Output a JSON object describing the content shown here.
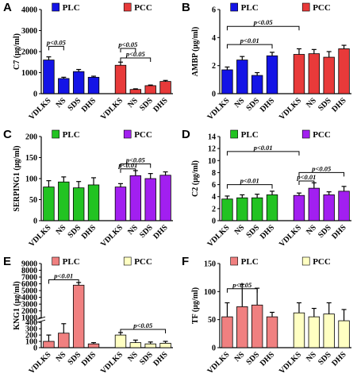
{
  "chart_data": [
    {
      "type": "bar",
      "panel": "A",
      "y_label": "C7 (μg/ml)",
      "categories": [
        "VDLKS",
        "NS",
        "SDS",
        "DHS",
        "VDLKS",
        "NS",
        "SDS",
        "DHS"
      ],
      "series": [
        {
          "name": "PLC",
          "color": "#1414e6",
          "values": [
            1600,
            720,
            1050,
            780,
            null,
            null,
            null,
            null
          ],
          "errors": [
            150,
            60,
            100,
            50,
            null,
            null,
            null,
            null
          ]
        },
        {
          "name": "PCC",
          "color": "#e83a3a",
          "values": [
            null,
            null,
            null,
            null,
            1350,
            200,
            380,
            580
          ],
          "errors": [
            null,
            null,
            null,
            null,
            150,
            30,
            30,
            50
          ]
        }
      ],
      "ylim": [
        0,
        4000
      ],
      "yticks": [
        0,
        1000,
        2000,
        3000,
        4000
      ],
      "annotations": [
        {
          "text": "p<0.05",
          "from": 0,
          "to": 1,
          "y": 2250
        },
        {
          "text": "p<0.05",
          "from": 4,
          "to": 5,
          "y": 2150
        },
        {
          "text": "p<0.05",
          "from": 4,
          "to": 6,
          "y": 1700
        }
      ]
    },
    {
      "type": "bar",
      "panel": "B",
      "y_label": "AMBP (μg/ml)",
      "categories": [
        "VDLKS",
        "NS",
        "SDS",
        "DHS",
        "VDLKS",
        "NS",
        "SDS",
        "DHS"
      ],
      "series": [
        {
          "name": "PLC",
          "color": "#1414e6",
          "values": [
            1.7,
            2.4,
            1.3,
            2.7,
            null,
            null,
            null,
            null
          ],
          "errors": [
            0.2,
            0.25,
            0.2,
            0.25,
            null,
            null,
            null,
            null
          ]
        },
        {
          "name": "PCC",
          "color": "#e83a3a",
          "values": [
            null,
            null,
            null,
            null,
            2.8,
            2.85,
            2.6,
            3.2
          ],
          "errors": [
            null,
            null,
            null,
            null,
            0.4,
            0.3,
            0.4,
            0.25
          ]
        }
      ],
      "ylim": [
        0,
        6
      ],
      "yticks": [
        0,
        2,
        4,
        6
      ],
      "annotations": [
        {
          "text": "p<0.01",
          "from": 0,
          "to": 3,
          "y": 3.5
        },
        {
          "text": "p<0.05",
          "from": 0,
          "to": 4,
          "y": 4.8
        }
      ]
    },
    {
      "type": "bar",
      "panel": "C",
      "y_label": "SERPING1 (μg/ml)",
      "categories": [
        "VDLKS",
        "NS",
        "SDS",
        "DHS",
        "VDLKS",
        "NS",
        "SDS",
        "DHS"
      ],
      "series": [
        {
          "name": "PLC",
          "color": "#22c322",
          "values": [
            80,
            92,
            78,
            85,
            null,
            null,
            null,
            null
          ],
          "errors": [
            15,
            12,
            15,
            17,
            null,
            null,
            null,
            null
          ]
        },
        {
          "name": "PCC",
          "color": "#a21ff0",
          "values": [
            null,
            null,
            null,
            null,
            80,
            107,
            100,
            108
          ],
          "errors": [
            null,
            null,
            null,
            null,
            8,
            12,
            12,
            8
          ]
        }
      ],
      "ylim": [
        0,
        200
      ],
      "yticks": [
        0,
        50,
        100,
        150,
        200
      ],
      "annotations": [
        {
          "text": "p<0.05",
          "from": 4,
          "to": 6,
          "y": 135
        },
        {
          "text": "p<0.01",
          "from": 4,
          "to": 5,
          "y": 123
        }
      ]
    },
    {
      "type": "bar",
      "panel": "D",
      "y_label": "C2 (μg/ml)",
      "categories": [
        "VDLKS",
        "NS",
        "SDS",
        "DHS",
        "VDLKS",
        "NS",
        "SDS",
        "DHS"
      ],
      "series": [
        {
          "name": "PLC",
          "color": "#22c322",
          "values": [
            3.6,
            3.8,
            3.8,
            4.3,
            null,
            null,
            null,
            null
          ],
          "errors": [
            0.5,
            0.5,
            0.6,
            0.6,
            null,
            null,
            null,
            null
          ]
        },
        {
          "name": "PCC",
          "color": "#a21ff0",
          "values": [
            null,
            null,
            null,
            null,
            4.2,
            5.4,
            4.3,
            4.9
          ],
          "errors": [
            null,
            null,
            null,
            null,
            0.4,
            0.9,
            0.5,
            0.8
          ]
        }
      ],
      "ylim": [
        0,
        14
      ],
      "yticks": [
        0,
        2,
        4,
        6,
        8,
        10,
        12,
        14
      ],
      "annotations": [
        {
          "text": "p<0.01",
          "from": 0,
          "to": 4,
          "y": 11.5
        },
        {
          "text": "p<0.05",
          "from": 4,
          "to": 7,
          "y": 8
        },
        {
          "text": "p<0.01",
          "from": 4,
          "to": 5,
          "y": 6.6
        },
        {
          "text": "p<0.01",
          "from": 0,
          "to": 3,
          "y": 6
        }
      ]
    },
    {
      "type": "bar",
      "panel": "E",
      "y_label": "KNG1 (μg/ml)",
      "categories": [
        "VDLKS",
        "NS",
        "SDS",
        "DHS",
        "VDLKS",
        "NS",
        "SDS",
        "DHS"
      ],
      "series": [
        {
          "name": "PLC",
          "color": "#f08080",
          "values": [
            100,
            230,
            5800,
            60,
            null,
            null,
            null,
            null
          ],
          "errors": [
            100,
            150,
            400,
            20,
            null,
            null,
            null,
            null
          ]
        },
        {
          "name": "PCC",
          "color": "#ffffc2",
          "values": [
            null,
            null,
            null,
            null,
            200,
            80,
            60,
            70
          ],
          "errors": [
            null,
            null,
            null,
            null,
            40,
            40,
            30,
            30
          ]
        }
      ],
      "ylim": [
        0,
        9000
      ],
      "ybreak": [
        400,
        1000
      ],
      "yticks": [
        0,
        100,
        200,
        300,
        400,
        1000,
        2000,
        3000,
        4000,
        5000,
        6000,
        7000,
        8000,
        9000
      ],
      "annotations": [
        {
          "text": "p<0.01",
          "from": 0,
          "to": 2,
          "y": 6600
        },
        {
          "text": "p<0.05",
          "from": 4,
          "to": 7,
          "y": 290
        }
      ]
    },
    {
      "type": "bar",
      "panel": "F",
      "y_label": "TF (μg/ml)",
      "categories": [
        "VDLKS",
        "NS",
        "SDS",
        "DHS",
        "VDLKS",
        "NS",
        "SDS",
        "DHS"
      ],
      "series": [
        {
          "name": "PLC",
          "color": "#f08080",
          "values": [
            55,
            73,
            76,
            55,
            null,
            null,
            null,
            null
          ],
          "errors": [
            25,
            40,
            30,
            8,
            null,
            null,
            null,
            null
          ]
        },
        {
          "name": "PCC",
          "color": "#ffffc2",
          "values": [
            null,
            null,
            null,
            null,
            62,
            55,
            60,
            48
          ],
          "errors": [
            null,
            null,
            null,
            null,
            18,
            15,
            20,
            20
          ]
        }
      ],
      "ylim": [
        0,
        150
      ],
      "yticks": [
        0,
        50,
        100,
        150
      ],
      "annotations": [
        {
          "text": "p<0.05",
          "from": 0,
          "to": 2,
          "y": 105
        }
      ]
    }
  ]
}
